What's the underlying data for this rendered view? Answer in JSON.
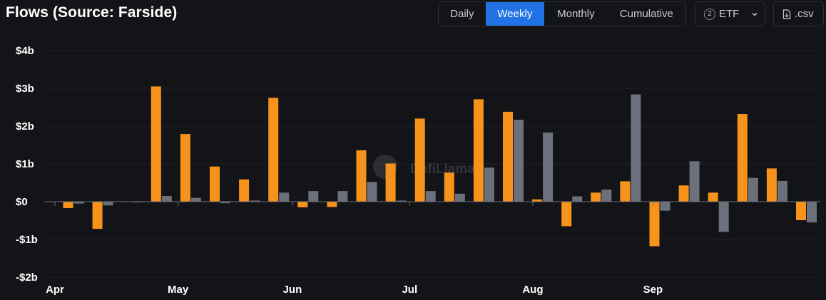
{
  "header": {
    "title": "Flows (Source: Farside)"
  },
  "toolbar": {
    "tabs": [
      {
        "label": "Daily",
        "active": false
      },
      {
        "label": "Weekly",
        "active": true
      },
      {
        "label": "Monthly",
        "active": false
      },
      {
        "label": "Cumulative",
        "active": false
      }
    ],
    "etf_count": "2",
    "etf_label": "ETF",
    "csv_label": ".csv"
  },
  "watermark": "DefiLlama",
  "colors": {
    "series1": "#f7931a",
    "series2": "#6b707a",
    "accent": "#2172e5"
  },
  "chart_data": {
    "type": "bar",
    "y_ticks": [
      {
        "value": 4,
        "label": "$4b"
      },
      {
        "value": 3,
        "label": "$3b"
      },
      {
        "value": 2,
        "label": "$2b"
      },
      {
        "value": 1,
        "label": "$1b"
      },
      {
        "value": 0,
        "label": "$0"
      },
      {
        "value": -1,
        "label": "-$1b"
      },
      {
        "value": -2,
        "label": "-$2b"
      }
    ],
    "ylim": [
      -2,
      4
    ],
    "x_labels": [
      "Apr",
      "May",
      "Jun",
      "Jul",
      "Aug",
      "Sep"
    ],
    "x_label_weeks": [
      0,
      4.2,
      8.1,
      12.1,
      16.3,
      20.4
    ],
    "series": [
      {
        "values": [
          -0.17,
          -0.72,
          0.01,
          3.05,
          1.79,
          0.93,
          0.59,
          2.75,
          -0.15,
          -0.14,
          1.36,
          1.01,
          2.2,
          0.77,
          2.71,
          2.38,
          0.06,
          -0.65,
          0.24,
          0.54,
          -1.18,
          0.43,
          0.24,
          2.32,
          0.88,
          -0.49
        ]
      },
      {
        "values": [
          -0.05,
          -0.1,
          -0.02,
          0.15,
          0.1,
          -0.04,
          0.03,
          0.24,
          0.28,
          0.28,
          0.52,
          0.03,
          0.28,
          0.21,
          0.9,
          2.17,
          1.83,
          0.14,
          0.32,
          2.84,
          -0.24,
          1.07,
          -0.8,
          0.63,
          0.55,
          -0.55
        ]
      }
    ]
  }
}
